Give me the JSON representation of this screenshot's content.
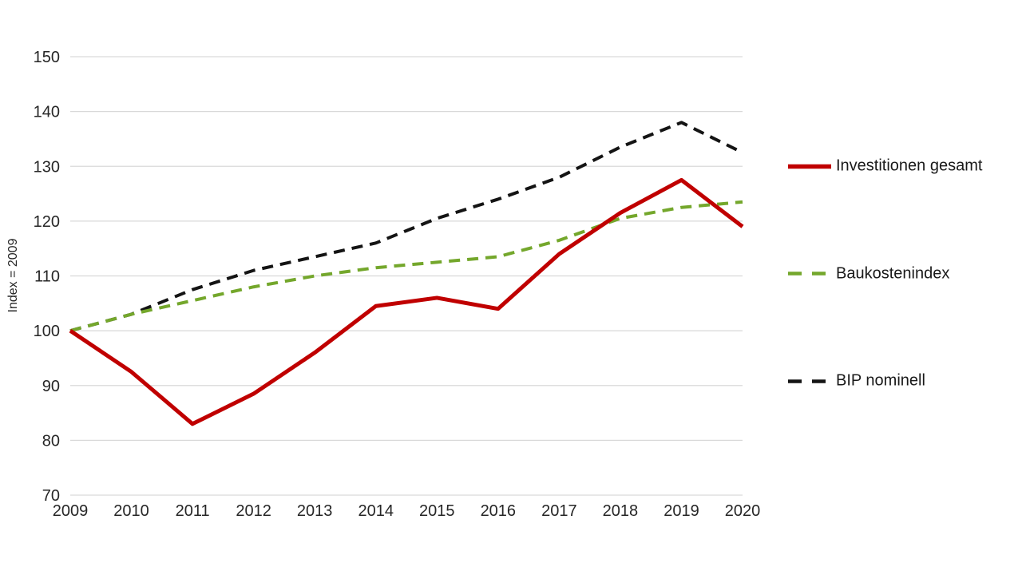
{
  "chart_data": {
    "type": "line",
    "title": "",
    "xlabel": "",
    "ylabel": "Index = 2009",
    "ylim": [
      70,
      150
    ],
    "yticks": [
      70,
      80,
      90,
      100,
      110,
      120,
      130,
      140,
      150
    ],
    "grid": "horizontal",
    "legend_position": "right",
    "categories": [
      "2009",
      "2010",
      "2011",
      "2012",
      "2013",
      "2014",
      "2015",
      "2016",
      "2017",
      "2018",
      "2019",
      "2020"
    ],
    "series": [
      {
        "name": "Investitionen gesamt",
        "color": "#c00000",
        "style": "solid",
        "values": [
          100,
          92.5,
          83,
          88.5,
          96,
          104.5,
          106,
          104,
          114,
          121.5,
          127.5,
          119
        ]
      },
      {
        "name": "Baukostenindex",
        "color": "#74a72c",
        "style": "dashed",
        "values": [
          100,
          103,
          105.5,
          108,
          110,
          111.5,
          112.5,
          113.5,
          116.5,
          120.5,
          122.5,
          123.5
        ]
      },
      {
        "name": "BIP nominell",
        "color": "#141414",
        "style": "dashed",
        "values": [
          100,
          103,
          107.5,
          111,
          113.5,
          116,
          120.5,
          124,
          128,
          133.5,
          138,
          132.5
        ]
      }
    ]
  }
}
